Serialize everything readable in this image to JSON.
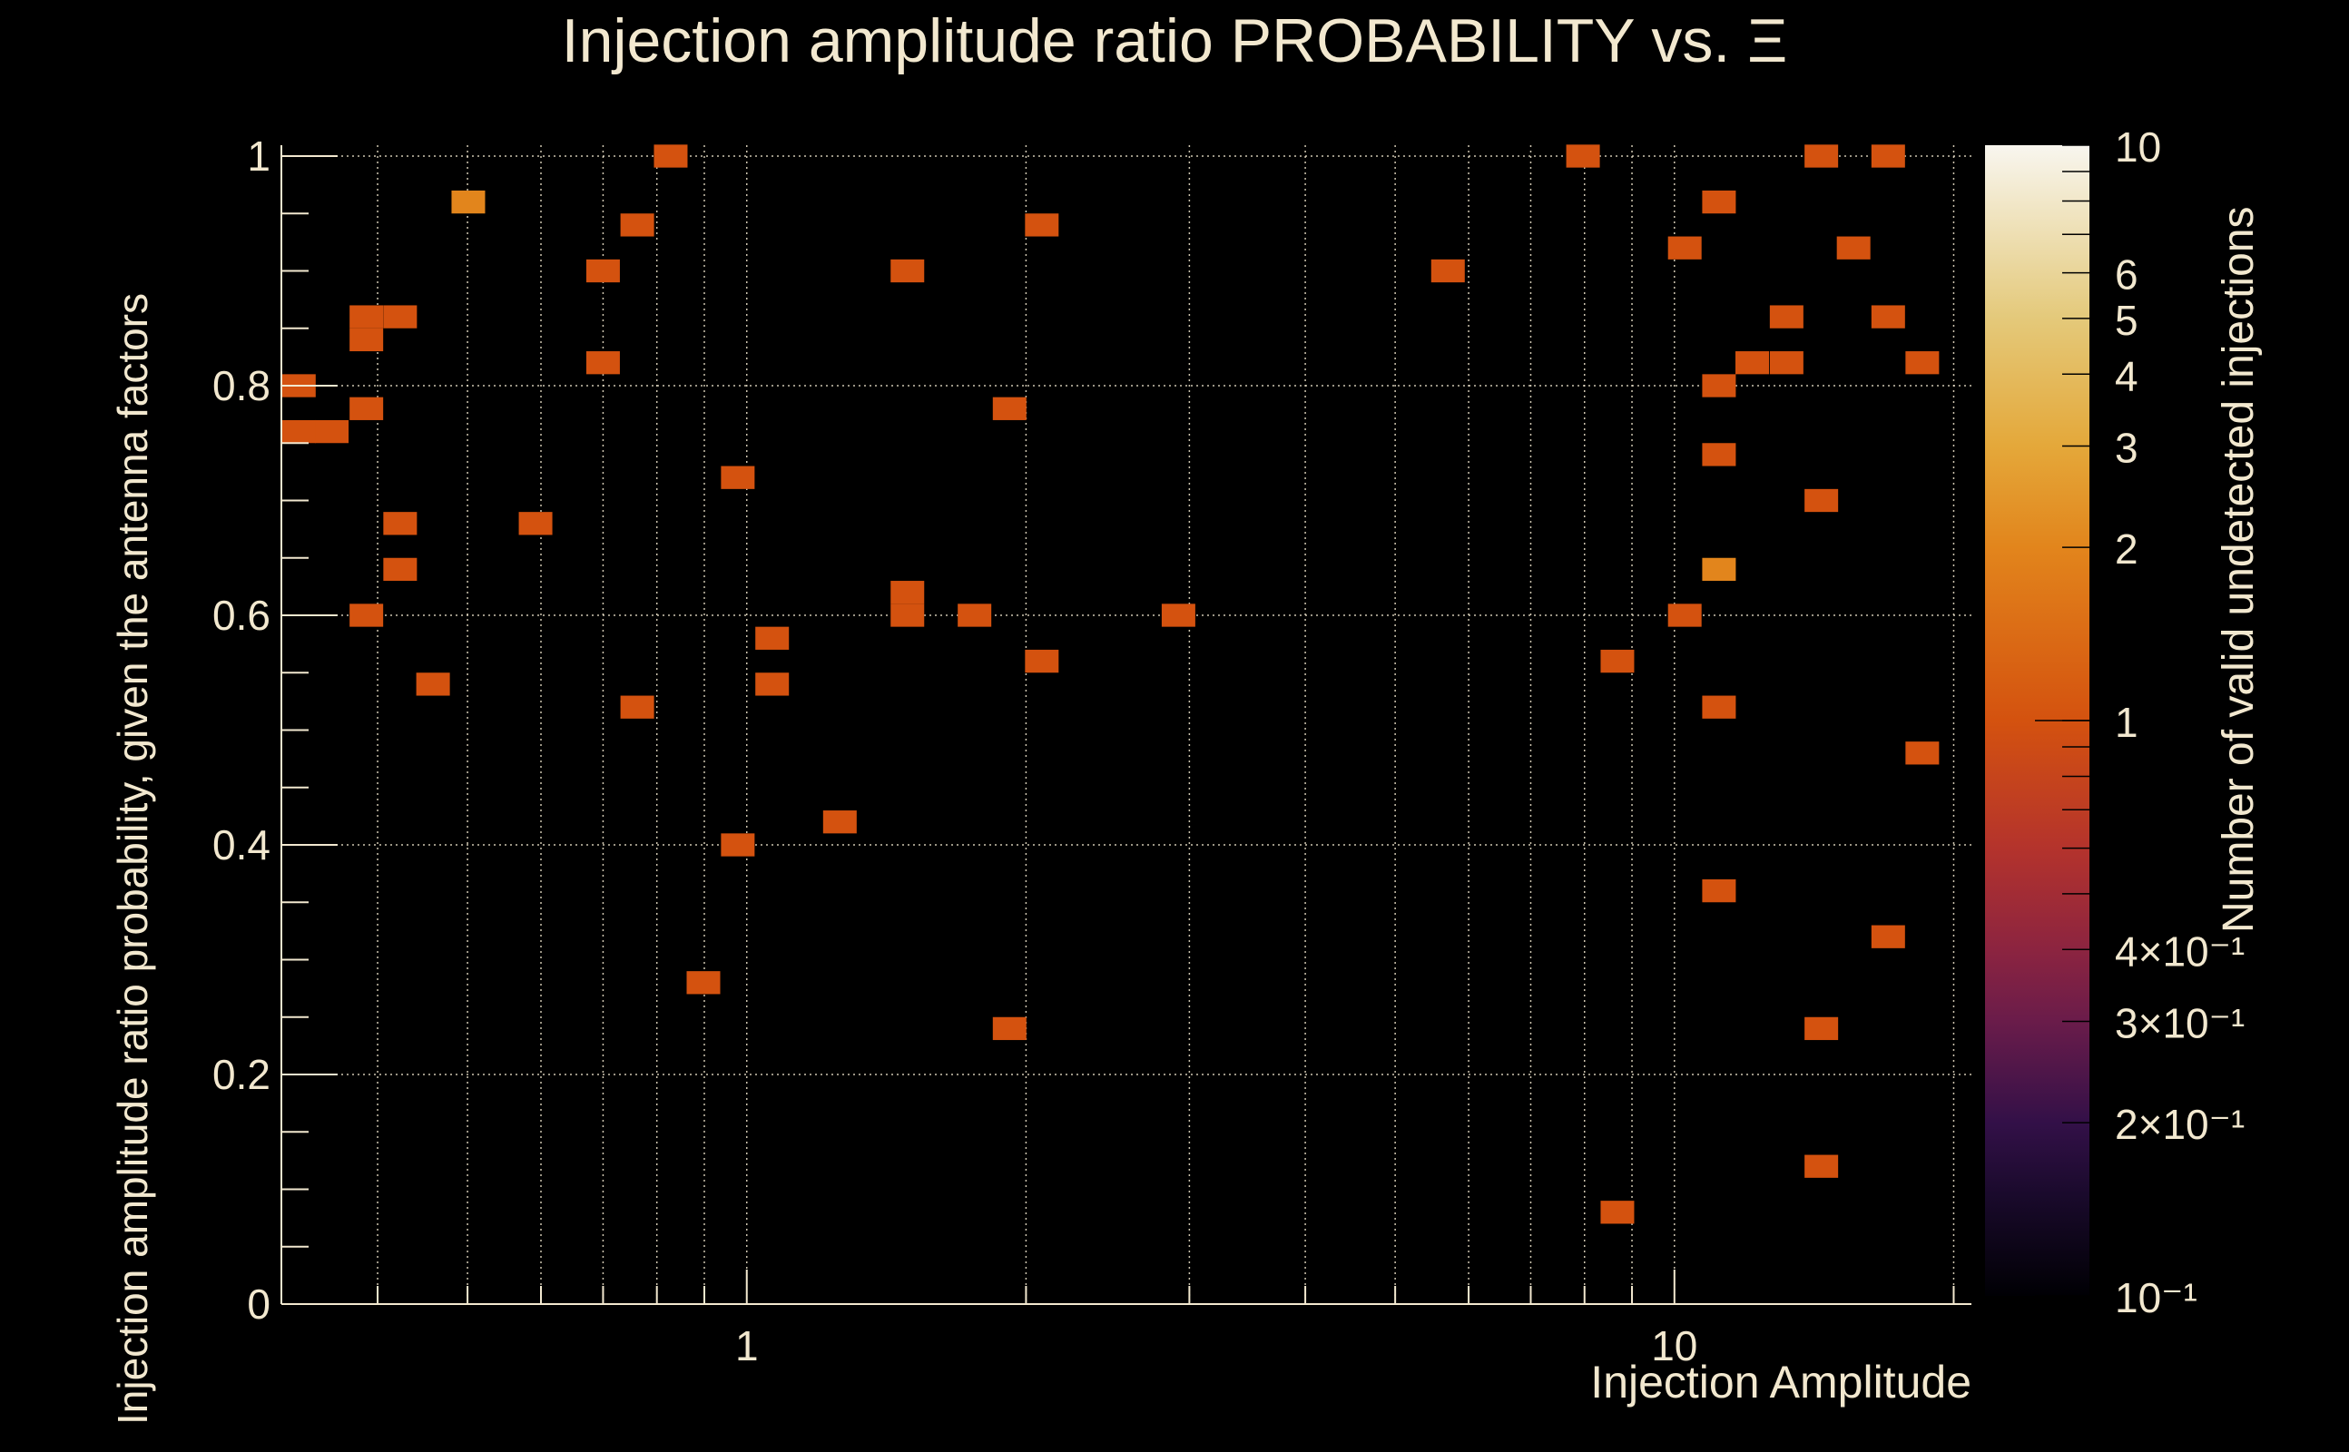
{
  "chart_data": {
    "type": "heatmap",
    "title": "Injection amplitude ratio PROBABILITY vs.  Ξ",
    "xlabel": "Injection Amplitude",
    "ylabel": "Injection amplitude ratio probability, given the antenna factors",
    "zlabel": "Number of valid undetected injections",
    "x_scale": "log",
    "xlim": [
      0.315,
      20.9
    ],
    "ylim": [
      0,
      1.0
    ],
    "zlim": [
      0.1,
      10
    ],
    "z_scale": "log",
    "grid": true,
    "x_ticks": [
      {
        "v": 1,
        "label": "1"
      },
      {
        "v": 10,
        "label": "10"
      }
    ],
    "y_ticks": [
      {
        "v": 0,
        "label": "0"
      },
      {
        "v": 0.2,
        "label": "0.2"
      },
      {
        "v": 0.4,
        "label": "0.4"
      },
      {
        "v": 0.6,
        "label": "0.6"
      },
      {
        "v": 0.8,
        "label": "0.8"
      },
      {
        "v": 1,
        "label": "1"
      }
    ],
    "z_ticks": [
      {
        "v": 10,
        "label": "10"
      },
      {
        "v": 6,
        "label": "6"
      },
      {
        "v": 5,
        "label": "5"
      },
      {
        "v": 4,
        "label": "4"
      },
      {
        "v": 3,
        "label": "3"
      },
      {
        "v": 2,
        "label": "2"
      },
      {
        "v": 1,
        "label": "1"
      },
      {
        "v": 0.4,
        "label": "4×10⁻¹"
      },
      {
        "v": 0.3,
        "label": "3×10⁻¹"
      },
      {
        "v": 0.2,
        "label": "2×10⁻¹"
      },
      {
        "v": 0.1,
        "label": "10⁻¹"
      }
    ],
    "colorscale": [
      {
        "v": 0.1,
        "color": "#000004"
      },
      {
        "v": 0.15,
        "color": "#1a0a2c"
      },
      {
        "v": 0.2,
        "color": "#331048"
      },
      {
        "v": 0.3,
        "color": "#6a1c4a"
      },
      {
        "v": 0.4,
        "color": "#8c2440"
      },
      {
        "v": 0.6,
        "color": "#b4332c"
      },
      {
        "v": 1,
        "color": "#d4520f"
      },
      {
        "v": 2,
        "color": "#e2851c"
      },
      {
        "v": 3,
        "color": "#e4a83a"
      },
      {
        "v": 5,
        "color": "#e4c97a"
      },
      {
        "v": 10,
        "color": "#f8f6ef"
      }
    ],
    "cells": [
      {
        "x": 0.329,
        "y": 0.8,
        "z": 1
      },
      {
        "x": 0.329,
        "y": 0.76,
        "z": 1
      },
      {
        "x": 0.357,
        "y": 0.76,
        "z": 1
      },
      {
        "x": 0.389,
        "y": 0.86,
        "z": 1
      },
      {
        "x": 0.423,
        "y": 0.86,
        "z": 1
      },
      {
        "x": 0.389,
        "y": 0.84,
        "z": 1
      },
      {
        "x": 0.389,
        "y": 0.78,
        "z": 1
      },
      {
        "x": 0.423,
        "y": 0.68,
        "z": 1
      },
      {
        "x": 0.423,
        "y": 0.64,
        "z": 1
      },
      {
        "x": 0.389,
        "y": 0.6,
        "z": 1
      },
      {
        "x": 0.459,
        "y": 0.54,
        "z": 1
      },
      {
        "x": 0.501,
        "y": 0.96,
        "z": 2
      },
      {
        "x": 0.592,
        "y": 0.68,
        "z": 1
      },
      {
        "x": 0.7,
        "y": 0.9,
        "z": 1
      },
      {
        "x": 0.7,
        "y": 0.82,
        "z": 1
      },
      {
        "x": 0.762,
        "y": 0.94,
        "z": 1
      },
      {
        "x": 0.762,
        "y": 0.52,
        "z": 1
      },
      {
        "x": 0.828,
        "y": 1.0,
        "z": 1
      },
      {
        "x": 0.898,
        "y": 0.28,
        "z": 1
      },
      {
        "x": 0.978,
        "y": 0.72,
        "z": 1
      },
      {
        "x": 0.978,
        "y": 0.4,
        "z": 1
      },
      {
        "x": 1.065,
        "y": 0.58,
        "z": 1
      },
      {
        "x": 1.065,
        "y": 0.54,
        "z": 1
      },
      {
        "x": 1.26,
        "y": 0.42,
        "z": 1
      },
      {
        "x": 1.49,
        "y": 0.9,
        "z": 1
      },
      {
        "x": 1.49,
        "y": 0.62,
        "z": 1
      },
      {
        "x": 1.49,
        "y": 0.6,
        "z": 1
      },
      {
        "x": 1.76,
        "y": 0.6,
        "z": 1
      },
      {
        "x": 1.92,
        "y": 0.78,
        "z": 1
      },
      {
        "x": 1.92,
        "y": 0.24,
        "z": 1
      },
      {
        "x": 2.08,
        "y": 0.94,
        "z": 1
      },
      {
        "x": 2.08,
        "y": 0.56,
        "z": 1
      },
      {
        "x": 2.92,
        "y": 0.6,
        "z": 1
      },
      {
        "x": 5.7,
        "y": 0.9,
        "z": 1
      },
      {
        "x": 7.97,
        "y": 1.0,
        "z": 1
      },
      {
        "x": 8.68,
        "y": 0.56,
        "z": 1
      },
      {
        "x": 8.68,
        "y": 0.08,
        "z": 1
      },
      {
        "x": 10.26,
        "y": 0.92,
        "z": 1
      },
      {
        "x": 10.26,
        "y": 0.6,
        "z": 1
      },
      {
        "x": 11.17,
        "y": 0.96,
        "z": 1
      },
      {
        "x": 11.17,
        "y": 0.8,
        "z": 1
      },
      {
        "x": 11.17,
        "y": 0.74,
        "z": 1
      },
      {
        "x": 11.17,
        "y": 0.64,
        "z": 2
      },
      {
        "x": 11.17,
        "y": 0.52,
        "z": 1
      },
      {
        "x": 11.17,
        "y": 0.36,
        "z": 1
      },
      {
        "x": 12.13,
        "y": 0.82,
        "z": 1
      },
      {
        "x": 13.21,
        "y": 0.82,
        "z": 1
      },
      {
        "x": 13.21,
        "y": 0.86,
        "z": 1
      },
      {
        "x": 14.4,
        "y": 1.0,
        "z": 1
      },
      {
        "x": 14.4,
        "y": 0.7,
        "z": 1
      },
      {
        "x": 14.4,
        "y": 0.24,
        "z": 1
      },
      {
        "x": 14.4,
        "y": 0.12,
        "z": 1
      },
      {
        "x": 15.6,
        "y": 0.92,
        "z": 1
      },
      {
        "x": 17.0,
        "y": 1.0,
        "z": 1
      },
      {
        "x": 17.0,
        "y": 0.86,
        "z": 1
      },
      {
        "x": 17.0,
        "y": 0.32,
        "z": 1
      },
      {
        "x": 18.5,
        "y": 0.82,
        "z": 1
      },
      {
        "x": 18.5,
        "y": 0.48,
        "z": 1
      }
    ]
  },
  "colors": {
    "text": "#f2e8cf",
    "background": "#000000"
  }
}
